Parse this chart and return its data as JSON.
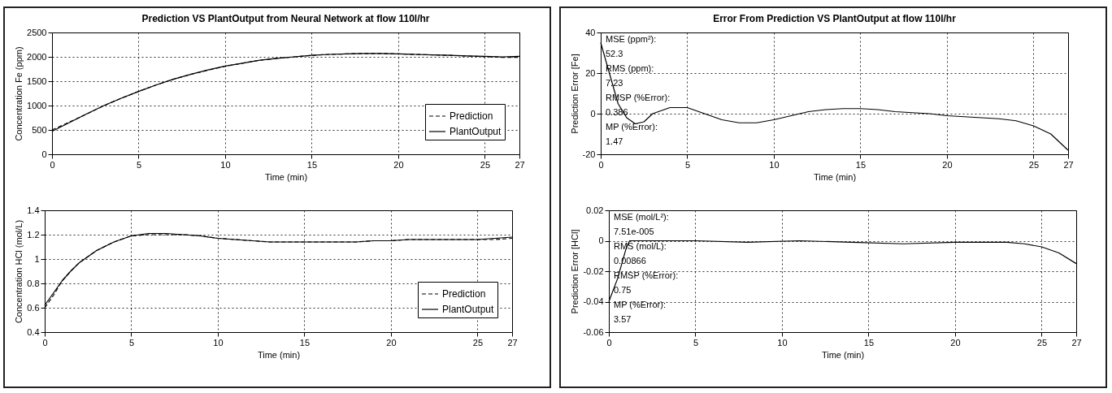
{
  "chart_data": [
    {
      "type": "line",
      "title": "Prediction VS PlantOutput from Neural Network at flow 110l/hr",
      "xlabel": "Time (min)",
      "ylabel": "Concentration Fe (ppm)",
      "x": [
        0,
        1,
        2,
        3,
        4,
        5,
        6,
        7,
        8,
        9,
        10,
        11,
        12,
        13,
        14,
        15,
        16,
        17,
        18,
        19,
        20,
        21,
        22,
        23,
        24,
        25,
        26,
        27
      ],
      "series": [
        {
          "name": "Prediction",
          "color": "#000000",
          "line_style": "dashed",
          "values": [
            500,
            660,
            825,
            1000,
            1150,
            1290,
            1420,
            1540,
            1640,
            1725,
            1805,
            1870,
            1930,
            1970,
            2000,
            2030,
            2050,
            2060,
            2070,
            2070,
            2060,
            2050,
            2040,
            2030,
            2015,
            2005,
            1990,
            1990
          ]
        },
        {
          "name": "PlantOutput",
          "color": "#000000",
          "line_style": "solid",
          "values": [
            470,
            650,
            830,
            1000,
            1150,
            1290,
            1420,
            1540,
            1640,
            1730,
            1810,
            1870,
            1930,
            1970,
            2000,
            2030,
            2050,
            2060,
            2070,
            2070,
            2060,
            2050,
            2040,
            2030,
            2020,
            2010,
            2000,
            2010
          ]
        }
      ],
      "xlim": [
        0,
        27
      ],
      "xticks": [
        0,
        5,
        10,
        15,
        20,
        25,
        27
      ],
      "ylim": [
        0,
        2500
      ],
      "yticks": [
        0,
        500,
        1000,
        1500,
        2000,
        2500
      ],
      "grid": true,
      "legend": "bottom right"
    },
    {
      "type": "line",
      "xlabel": "Time (min)",
      "ylabel": "Concentration HCl (mol/L)",
      "x": [
        0,
        0.5,
        1,
        1.5,
        2,
        3,
        4,
        5,
        6,
        7,
        8,
        9,
        10,
        11,
        12,
        13,
        14,
        15,
        16,
        17,
        18,
        19,
        20,
        21,
        22,
        23,
        24,
        25,
        26,
        27
      ],
      "series": [
        {
          "name": "Prediction",
          "color": "#000000",
          "line_style": "dashed",
          "values": [
            0.6,
            0.7,
            0.82,
            0.9,
            0.97,
            1.07,
            1.14,
            1.19,
            1.2,
            1.2,
            1.2,
            1.19,
            1.17,
            1.16,
            1.15,
            1.14,
            1.14,
            1.14,
            1.14,
            1.14,
            1.14,
            1.15,
            1.15,
            1.16,
            1.16,
            1.16,
            1.16,
            1.16,
            1.16,
            1.17
          ]
        },
        {
          "name": "PlantOutput",
          "color": "#000000",
          "line_style": "solid",
          "values": [
            0.62,
            0.72,
            0.82,
            0.9,
            0.97,
            1.07,
            1.14,
            1.19,
            1.21,
            1.21,
            1.2,
            1.19,
            1.17,
            1.16,
            1.15,
            1.14,
            1.14,
            1.14,
            1.14,
            1.14,
            1.14,
            1.15,
            1.15,
            1.16,
            1.16,
            1.16,
            1.16,
            1.16,
            1.17,
            1.18
          ]
        }
      ],
      "xlim": [
        0,
        27
      ],
      "xticks": [
        0,
        5,
        10,
        15,
        20,
        25,
        27
      ],
      "ylim": [
        0.4,
        1.4
      ],
      "yticks": [
        0.4,
        0.6,
        0.8,
        1,
        1.2,
        1.4
      ],
      "grid": true,
      "legend": "bottom right"
    },
    {
      "type": "line",
      "title": "Error From Prediction VS PlantOutput at flow 110l/hr",
      "xlabel": "Time (min)",
      "ylabel": "Prediction Error [Fe]",
      "x": [
        0,
        0.5,
        1,
        1.5,
        2,
        2.5,
        3,
        4,
        5,
        6,
        7,
        8,
        9,
        10,
        11,
        12,
        13,
        14,
        15,
        16,
        17,
        18,
        19,
        20,
        21,
        22,
        23,
        24,
        25,
        26,
        27
      ],
      "series": [
        {
          "color": "#000000",
          "line_style": "solid",
          "values": [
            35,
            20,
            5,
            -2,
            -5,
            -4,
            0,
            3,
            3,
            0,
            -3,
            -4.5,
            -4.5,
            -3,
            -1,
            1,
            2,
            2.5,
            2.5,
            2,
            1,
            0.5,
            0,
            -1,
            -1.5,
            -2,
            -2.5,
            -3.5,
            -6,
            -10,
            -18
          ]
        }
      ],
      "xlim": [
        0,
        27
      ],
      "xticks": [
        0,
        5,
        10,
        15,
        20,
        25,
        27
      ],
      "ylim": [
        -20,
        40
      ],
      "yticks": [
        -20,
        0,
        20,
        40
      ],
      "grid": true,
      "annotations": [
        "MSE (ppm²):",
        "52.3",
        "RMS (ppm):",
        "7.23",
        "RMSP (%Error):",
        "0.386",
        "MP (%Error):",
        "1.47"
      ]
    },
    {
      "type": "line",
      "xlabel": "Time (min)",
      "ylabel": "Prediction Error [HCl]",
      "x": [
        0,
        0.5,
        1,
        1.2,
        3,
        5,
        8,
        11,
        14,
        17,
        20,
        23,
        24,
        25,
        26,
        27
      ],
      "series": [
        {
          "color": "#000000",
          "line_style": "solid",
          "values": [
            -0.04,
            -0.025,
            -0.005,
            0,
            0,
            0,
            -0.001,
            0,
            -0.001,
            -0.002,
            -0.001,
            -0.001,
            -0.002,
            -0.004,
            -0.008,
            -0.015
          ]
        }
      ],
      "xlim": [
        0,
        27
      ],
      "xticks": [
        0,
        5,
        10,
        15,
        20,
        25,
        27
      ],
      "ylim": [
        -0.06,
        0.02
      ],
      "yticks": [
        -0.06,
        -0.04,
        -0.02,
        0,
        0.02
      ],
      "grid": true,
      "annotations": [
        "MSE (mol/L²):",
        "7.51e-005",
        "RMS (mol/L):",
        "0.00866",
        "RMSP (%Error):",
        "0.75",
        "MP (%Error):",
        "3.57"
      ]
    }
  ]
}
